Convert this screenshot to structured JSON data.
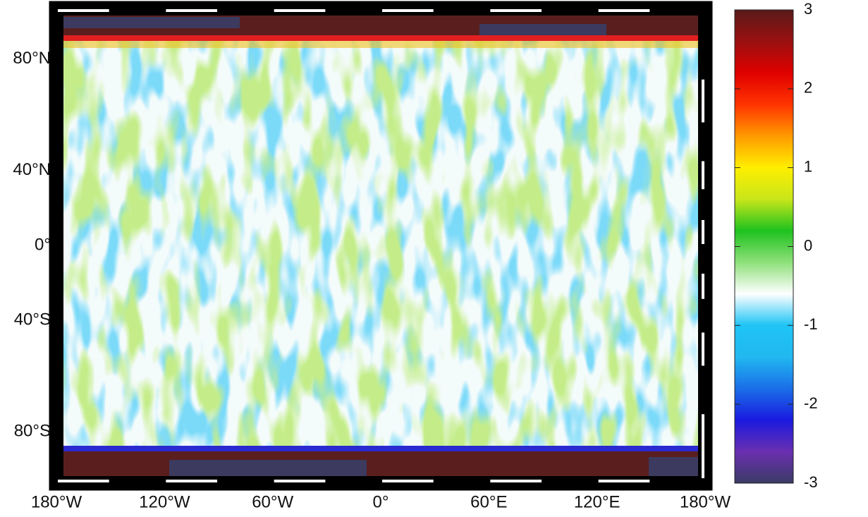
{
  "map": {
    "projection": "miller",
    "xlim": [
      -180,
      180
    ],
    "ylim": [
      -90,
      90
    ],
    "xticks": [
      {
        "value": -180,
        "label": "180°W"
      },
      {
        "value": -120,
        "label": "120°W"
      },
      {
        "value": -60,
        "label": "60°W"
      },
      {
        "value": 0,
        "label": "0°"
      },
      {
        "value": 60,
        "label": "60°E"
      },
      {
        "value": 120,
        "label": "120°E"
      },
      {
        "value": 180,
        "label": "180°W"
      }
    ],
    "yticks": [
      {
        "value": 80,
        "label": "80°N"
      },
      {
        "value": 40,
        "label": "40°N"
      },
      {
        "value": 0,
        "label": "0°"
      },
      {
        "value": -40,
        "label": "40°S"
      },
      {
        "value": -80,
        "label": "80°S"
      }
    ]
  },
  "colorbar": {
    "lim": [
      -3,
      3
    ],
    "ticks": [
      3,
      2,
      1,
      0,
      -1,
      -2,
      -3
    ],
    "colormap": [
      "#3b3b66",
      "#6a2fb0",
      "#1a1adf",
      "#1a6fe8",
      "#21b8f0",
      "#1fc4f5",
      "#ffffff",
      "#8ee07a",
      "#1fc21f",
      "#c8e61a",
      "#ffee00",
      "#ff9a00",
      "#ff3300",
      "#e00000",
      "#9a1010",
      "#5a1a1a"
    ]
  }
}
